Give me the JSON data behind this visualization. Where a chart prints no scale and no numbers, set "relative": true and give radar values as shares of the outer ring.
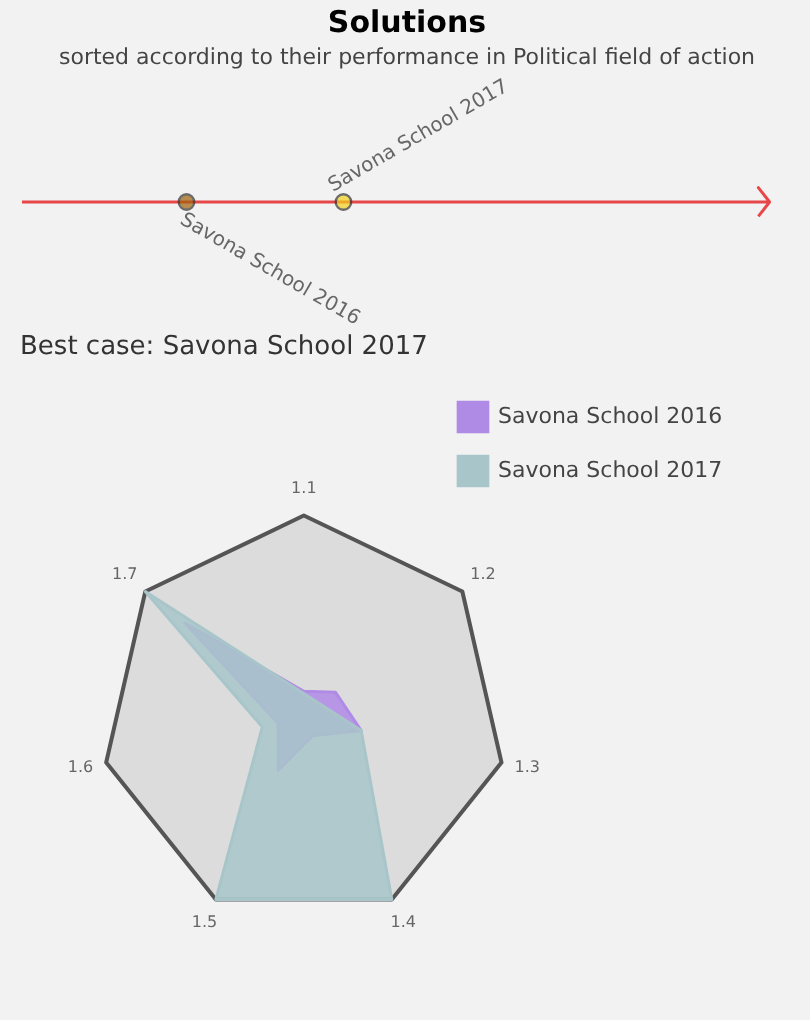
{
  "chart_data": [
    {
      "type": "other",
      "title": "Solutions",
      "subtitle": "sorted according to their performance in Political field of action",
      "annotations": [
        "Savona School 2016",
        "Savona School 2017"
      ]
    },
    {
      "type": "radar",
      "title": "Best case: Savona School 2017",
      "categories": [
        "1.1",
        "1.2",
        "1.3",
        "1.4",
        "1.5",
        "1.6",
        "1.7"
      ],
      "relative": true,
      "legend": "top right",
      "series": [
        {
          "name": "Savona School 2016",
          "color": "#b08be6",
          "values": [
            0.13,
            0.2,
            0.29,
            0.1,
            0.29,
            0.13,
            0.75
          ]
        },
        {
          "name": "Savona School 2017",
          "color": "#a8c6ca",
          "values": [
            null,
            null,
            0.29,
            1,
            1,
            0.21,
            1
          ]
        }
      ]
    }
  ]
}
